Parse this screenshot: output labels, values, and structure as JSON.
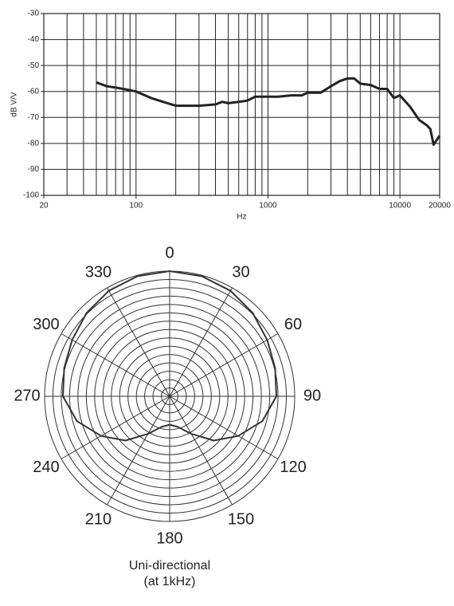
{
  "chart_data": [
    {
      "type": "line",
      "xlabel": "Hz",
      "ylabel": "dB V/V",
      "log_x": true,
      "xlim": [
        20,
        20000
      ],
      "xticks": [
        20,
        100,
        1000,
        10000,
        20000
      ],
      "x_minor_gridlines": [
        30,
        40,
        50,
        60,
        70,
        80,
        90,
        200,
        300,
        400,
        500,
        600,
        700,
        800,
        900,
        2000,
        3000,
        4000,
        5000,
        6000,
        7000,
        8000,
        9000
      ],
      "ylim": [
        -100,
        -30
      ],
      "yticks": [
        -30,
        -40,
        -50,
        -60,
        -70,
        -80,
        -90,
        -100
      ],
      "grid": true,
      "x": [
        50,
        60,
        70,
        80,
        100,
        130,
        160,
        200,
        250,
        300,
        400,
        450,
        500,
        600,
        700,
        800,
        1000,
        1200,
        1500,
        1800,
        2000,
        2500,
        3000,
        3500,
        4000,
        4500,
        5000,
        6000,
        7000,
        8000,
        9000,
        10000,
        12000,
        14000,
        16000,
        17000,
        18000,
        20000
      ],
      "series": [
        {
          "color": "#222222",
          "values": [
            -56.5,
            -58,
            -58.5,
            -59,
            -60,
            -62.5,
            -64,
            -65.5,
            -65.5,
            -65.5,
            -65,
            -64,
            -64.5,
            -64,
            -63.5,
            -62,
            -62,
            -62,
            -61.5,
            -61.5,
            -60.5,
            -60.5,
            -58,
            -56,
            -55,
            -55,
            -57,
            -57.5,
            -59,
            -59,
            -62.5,
            -61.5,
            -66,
            -71,
            -73,
            -74.5,
            -80.5,
            -77
          ]
        }
      ]
    },
    {
      "type": "polar",
      "caption": [
        "Uni-directional",
        "(at 1kHz)"
      ],
      "angle_ticks": [
        0,
        30,
        60,
        90,
        120,
        150,
        180,
        210,
        240,
        270,
        300,
        330
      ],
      "rlim": [
        0,
        15
      ],
      "r_gridlines": [
        1,
        2,
        3,
        4,
        5,
        6,
        7,
        8,
        9,
        10,
        11,
        12,
        13,
        14,
        15
      ],
      "color": "#333333",
      "theta": [
        0,
        15,
        30,
        45,
        60,
        75,
        90,
        105,
        120,
        135,
        150,
        165,
        180,
        195,
        210,
        225,
        240,
        255,
        270,
        285,
        300,
        315,
        330,
        345,
        360
      ],
      "values": [
        15,
        14.9,
        14.6,
        14.1,
        13.5,
        13.1,
        12.8,
        11.5,
        9.5,
        7.5,
        5.2,
        3.8,
        3.4,
        3.8,
        5.2,
        7.5,
        9.5,
        11.5,
        12.8,
        13.1,
        13.5,
        14.1,
        14.6,
        14.9,
        15
      ]
    }
  ]
}
